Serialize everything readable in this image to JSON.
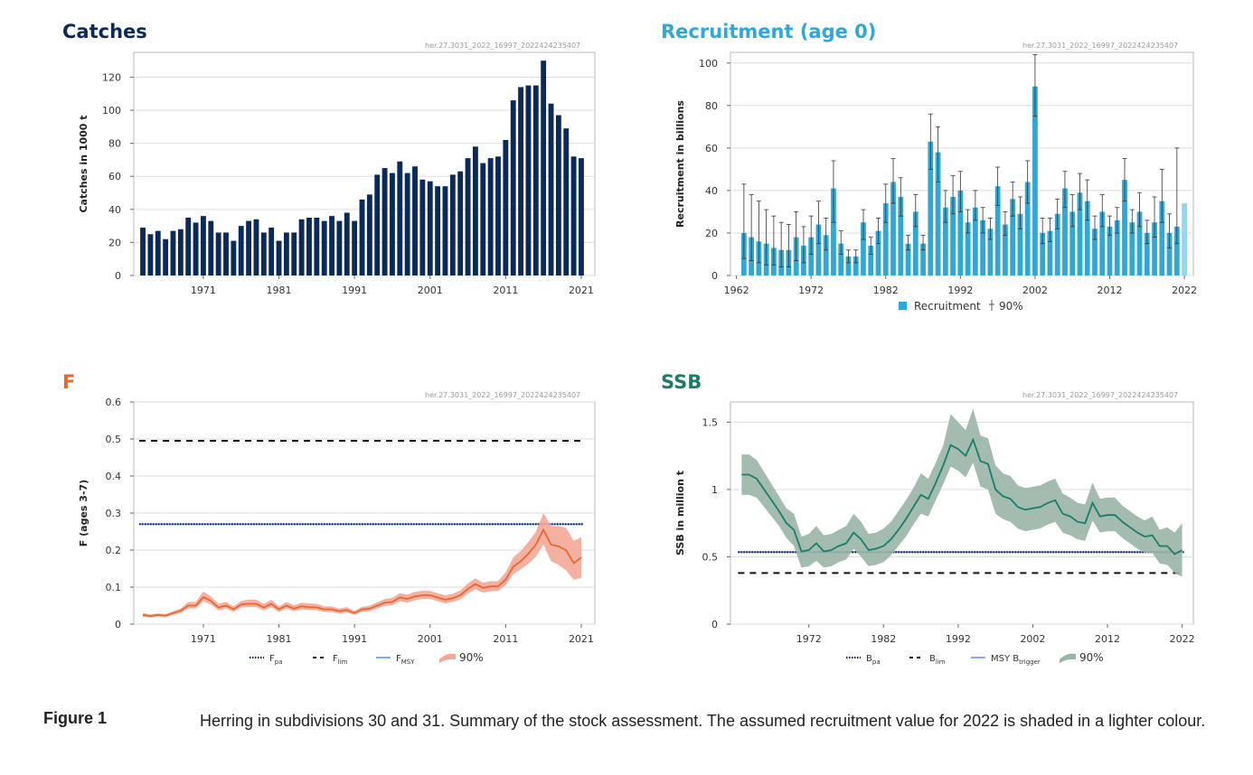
{
  "panels": {
    "catches": {
      "title": "Catches",
      "tag": "her.27.3031_2022_16997_2022424235407",
      "color": "#0b2a5a"
    },
    "recruitment": {
      "title": "Recruitment (age 0)",
      "tag": "her.27.3031_2022_16997_2022424235407",
      "color": "#2fa8d8"
    },
    "f": {
      "title": "F",
      "tag": "her.27.3031_2022_16997_2022424235407",
      "color": "#e8672f"
    },
    "ssb": {
      "title": "SSB",
      "tag": "her.27.3031_2022_16997_2022424235407",
      "color": "#1a7d6b"
    }
  },
  "chart_data": [
    {
      "id": "catches",
      "type": "bar",
      "ylabel": "Catches in 1000 t",
      "ylim": [
        0,
        135
      ],
      "yticks": [
        0,
        20,
        40,
        60,
        80,
        100,
        120
      ],
      "xticks": [
        1971,
        1981,
        1991,
        2001,
        2011,
        2021
      ],
      "grid": true,
      "bar_color": "#0b2a5a",
      "series": [
        {
          "x": [
            1963,
            1964,
            1965,
            1966,
            1967,
            1968,
            1969,
            1970,
            1971,
            1972,
            1973,
            1974,
            1975,
            1976,
            1977,
            1978,
            1979,
            1980,
            1981,
            1982,
            1983,
            1984,
            1985,
            1986,
            1987,
            1988,
            1989,
            1990,
            1991,
            1992,
            1993,
            1994,
            1995,
            1996,
            1997,
            1998,
            1999,
            2000,
            2001,
            2002,
            2003,
            2004,
            2005,
            2006,
            2007,
            2008,
            2009,
            2010,
            2011,
            2012,
            2013,
            2014,
            2015,
            2016,
            2017,
            2018,
            2019,
            2020,
            2021
          ],
          "values": [
            29,
            25,
            27,
            22,
            27,
            28,
            35,
            32,
            36,
            33,
            26,
            26,
            21,
            30,
            33,
            34,
            26,
            29,
            21,
            26,
            26,
            34,
            35,
            35,
            33,
            36,
            33,
            38,
            33,
            46,
            49,
            61,
            65,
            62,
            69,
            62,
            66,
            58,
            57,
            54,
            54,
            61,
            63,
            71,
            78,
            68,
            71,
            72,
            82,
            106,
            114,
            115,
            115,
            130,
            104,
            97,
            89,
            72,
            71
          ]
        }
      ]
    },
    {
      "id": "recruitment",
      "type": "bar",
      "ylabel": "Recruitment in billions",
      "ylim": [
        0,
        105
      ],
      "yticks": [
        0,
        20,
        40,
        60,
        80,
        100
      ],
      "xticks": [
        1962,
        1972,
        1982,
        1992,
        2002,
        2012,
        2022
      ],
      "grid": true,
      "bar_color": "#2fa8d8",
      "assumed_color": "#92d6f2",
      "legend": {
        "bar": "Recruitment",
        "error": "90%"
      },
      "series": [
        {
          "name": "Recruitment",
          "x": [
            1963,
            1964,
            1965,
            1966,
            1967,
            1968,
            1969,
            1970,
            1971,
            1972,
            1973,
            1974,
            1975,
            1976,
            1977,
            1978,
            1979,
            1980,
            1981,
            1982,
            1983,
            1984,
            1985,
            1986,
            1987,
            1988,
            1989,
            1990,
            1991,
            1992,
            1993,
            1994,
            1995,
            1996,
            1997,
            1998,
            1999,
            2000,
            2001,
            2002,
            2003,
            2004,
            2005,
            2006,
            2007,
            2008,
            2009,
            2010,
            2011,
            2012,
            2013,
            2014,
            2015,
            2016,
            2017,
            2018,
            2019,
            2020,
            2021,
            2022
          ],
          "values": [
            20,
            18,
            16,
            15,
            13,
            12,
            12,
            18,
            14,
            18,
            24,
            19,
            41,
            15,
            9,
            9,
            25,
            14,
            21,
            34,
            44,
            37,
            15,
            30,
            15,
            63,
            58,
            32,
            37,
            40,
            25,
            32,
            26,
            22,
            42,
            24,
            36,
            29,
            44,
            89,
            20,
            21,
            29,
            41,
            30,
            39,
            35,
            22,
            30,
            23,
            26,
            45,
            25,
            30,
            20,
            25,
            35,
            20,
            23,
            34
          ],
          "low": [
            8,
            7,
            6,
            5,
            5,
            4,
            4,
            7,
            6,
            10,
            15,
            12,
            25,
            10,
            6,
            6,
            17,
            10,
            15,
            25,
            34,
            28,
            12,
            23,
            12,
            50,
            44,
            25,
            29,
            30,
            20,
            26,
            20,
            17,
            33,
            19,
            28,
            22,
            34,
            75,
            15,
            16,
            22,
            32,
            23,
            31,
            26,
            17,
            23,
            19,
            20,
            35,
            20,
            23,
            15,
            18,
            25,
            13,
            15,
            34
          ],
          "high": [
            43,
            38,
            35,
            31,
            28,
            25,
            24,
            30,
            23,
            28,
            35,
            27,
            54,
            21,
            12,
            12,
            31,
            18,
            27,
            43,
            55,
            46,
            19,
            38,
            19,
            76,
            70,
            40,
            47,
            49,
            31,
            40,
            32,
            27,
            51,
            30,
            44,
            37,
            54,
            104,
            27,
            27,
            36,
            49,
            38,
            48,
            45,
            28,
            38,
            28,
            32,
            55,
            31,
            39,
            26,
            37,
            50,
            29,
            60,
            34
          ]
        }
      ]
    },
    {
      "id": "f",
      "type": "line",
      "ylabel": "F (ages 3-7)",
      "ylim": [
        0,
        0.6
      ],
      "yticks": [
        0,
        0.1,
        0.2,
        0.3,
        0.4,
        0.5,
        0.6
      ],
      "xticks": [
        1971,
        1981,
        1991,
        2001,
        2011,
        2021
      ],
      "grid": true,
      "line_color": "#e8672f",
      "band_color": "#f3a898",
      "ref_lines": {
        "fpa": 0.27,
        "flim": 0.495,
        "fmsy": 0.27
      },
      "legend": [
        {
          "style": "dotted",
          "label": "F",
          "sub": "pa"
        },
        {
          "style": "dashed",
          "label": "F",
          "sub": "lim"
        },
        {
          "style": "solid",
          "label": "F",
          "sub": "MSY"
        },
        {
          "style": "band",
          "label": "90%",
          "sub": ""
        }
      ],
      "series": [
        {
          "x": [
            1963,
            1964,
            1965,
            1966,
            1967,
            1968,
            1969,
            1970,
            1971,
            1972,
            1973,
            1974,
            1975,
            1976,
            1977,
            1978,
            1979,
            1980,
            1981,
            1982,
            1983,
            1984,
            1985,
            1986,
            1987,
            1988,
            1989,
            1990,
            1991,
            1992,
            1993,
            1994,
            1995,
            1996,
            1997,
            1998,
            1999,
            2000,
            2001,
            2002,
            2003,
            2004,
            2005,
            2006,
            2007,
            2008,
            2009,
            2010,
            2011,
            2012,
            2013,
            2014,
            2015,
            2016,
            2017,
            2018,
            2019,
            2020,
            2021
          ],
          "values": [
            0.025,
            0.022,
            0.025,
            0.023,
            0.03,
            0.036,
            0.05,
            0.05,
            0.073,
            0.063,
            0.045,
            0.05,
            0.04,
            0.053,
            0.055,
            0.055,
            0.045,
            0.055,
            0.04,
            0.05,
            0.042,
            0.048,
            0.046,
            0.045,
            0.04,
            0.04,
            0.035,
            0.038,
            0.03,
            0.04,
            0.042,
            0.05,
            0.058,
            0.06,
            0.072,
            0.068,
            0.075,
            0.078,
            0.078,
            0.072,
            0.066,
            0.07,
            0.078,
            0.095,
            0.108,
            0.098,
            0.102,
            0.102,
            0.12,
            0.155,
            0.17,
            0.19,
            0.215,
            0.255,
            0.215,
            0.21,
            0.2,
            0.165,
            0.18
          ],
          "low": [
            0.02,
            0.018,
            0.021,
            0.019,
            0.025,
            0.03,
            0.042,
            0.042,
            0.062,
            0.053,
            0.037,
            0.042,
            0.033,
            0.045,
            0.046,
            0.046,
            0.037,
            0.046,
            0.033,
            0.042,
            0.035,
            0.04,
            0.038,
            0.037,
            0.033,
            0.033,
            0.029,
            0.031,
            0.025,
            0.034,
            0.035,
            0.042,
            0.049,
            0.051,
            0.062,
            0.058,
            0.065,
            0.068,
            0.068,
            0.062,
            0.056,
            0.06,
            0.067,
            0.083,
            0.094,
            0.085,
            0.089,
            0.089,
            0.105,
            0.135,
            0.148,
            0.163,
            0.182,
            0.215,
            0.17,
            0.16,
            0.145,
            0.12,
            0.125
          ],
          "high": [
            0.03,
            0.026,
            0.029,
            0.027,
            0.035,
            0.042,
            0.06,
            0.06,
            0.088,
            0.075,
            0.055,
            0.06,
            0.048,
            0.063,
            0.066,
            0.066,
            0.055,
            0.066,
            0.048,
            0.06,
            0.051,
            0.058,
            0.056,
            0.055,
            0.048,
            0.048,
            0.042,
            0.046,
            0.036,
            0.047,
            0.05,
            0.059,
            0.068,
            0.071,
            0.084,
            0.08,
            0.087,
            0.09,
            0.09,
            0.084,
            0.078,
            0.082,
            0.091,
            0.11,
            0.124,
            0.112,
            0.116,
            0.116,
            0.14,
            0.18,
            0.198,
            0.222,
            0.25,
            0.3,
            0.265,
            0.265,
            0.26,
            0.225,
            0.235
          ]
        }
      ]
    },
    {
      "id": "ssb",
      "type": "line",
      "ylabel": "SSB in million t",
      "ylim": [
        0,
        1.65
      ],
      "yticks": [
        0,
        0.5,
        1,
        1.5
      ],
      "ytick_labels": [
        "0",
        "0.5",
        "1",
        "1.5"
      ],
      "xticks": [
        1972,
        1982,
        1992,
        2002,
        2012,
        2022
      ],
      "grid": true,
      "line_color": "#1a7d6b",
      "band_color": "#9ab5a6",
      "ref_lines": {
        "bpa": 0.535,
        "blim": 0.38,
        "msy_btrigger": 0.535
      },
      "legend": [
        {
          "style": "dotted",
          "label": "B",
          "sub": "pa"
        },
        {
          "style": "dashed",
          "label": "B",
          "sub": "lim"
        },
        {
          "style": "solid",
          "label": "MSY B",
          "sub": "trigger"
        },
        {
          "style": "band",
          "label": "90%",
          "sub": ""
        }
      ],
      "series": [
        {
          "x": [
            1963,
            1964,
            1965,
            1966,
            1967,
            1968,
            1969,
            1970,
            1971,
            1972,
            1973,
            1974,
            1975,
            1976,
            1977,
            1978,
            1979,
            1980,
            1981,
            1982,
            1983,
            1984,
            1985,
            1986,
            1987,
            1988,
            1989,
            1990,
            1991,
            1992,
            1993,
            1994,
            1995,
            1996,
            1997,
            1998,
            1999,
            2000,
            2001,
            2002,
            2003,
            2004,
            2005,
            2006,
            2007,
            2008,
            2009,
            2010,
            2011,
            2012,
            2013,
            2014,
            2015,
            2016,
            2017,
            2018,
            2019,
            2020,
            2021,
            2022
          ],
          "values": [
            1.11,
            1.11,
            1.08,
            1.0,
            0.92,
            0.84,
            0.75,
            0.7,
            0.54,
            0.55,
            0.6,
            0.54,
            0.55,
            0.58,
            0.6,
            0.68,
            0.63,
            0.55,
            0.56,
            0.58,
            0.63,
            0.7,
            0.78,
            0.87,
            0.96,
            0.93,
            1.05,
            1.18,
            1.33,
            1.3,
            1.25,
            1.37,
            1.21,
            1.19,
            1.0,
            0.95,
            0.93,
            0.87,
            0.85,
            0.86,
            0.87,
            0.9,
            0.92,
            0.82,
            0.8,
            0.76,
            0.75,
            0.9,
            0.8,
            0.81,
            0.81,
            0.76,
            0.72,
            0.68,
            0.65,
            0.66,
            0.58,
            0.58,
            0.52,
            0.55
          ],
          "low": [
            0.96,
            0.96,
            0.94,
            0.87,
            0.8,
            0.73,
            0.64,
            0.58,
            0.42,
            0.43,
            0.47,
            0.42,
            0.43,
            0.46,
            0.48,
            0.56,
            0.5,
            0.43,
            0.44,
            0.46,
            0.51,
            0.58,
            0.65,
            0.74,
            0.82,
            0.8,
            0.92,
            1.04,
            1.17,
            1.14,
            1.09,
            1.2,
            1.02,
            1.0,
            0.82,
            0.78,
            0.76,
            0.71,
            0.69,
            0.7,
            0.71,
            0.74,
            0.76,
            0.68,
            0.66,
            0.63,
            0.62,
            0.77,
            0.68,
            0.69,
            0.69,
            0.64,
            0.6,
            0.56,
            0.53,
            0.53,
            0.45,
            0.44,
            0.38,
            0.35
          ],
          "high": [
            1.26,
            1.26,
            1.22,
            1.13,
            1.04,
            0.95,
            0.86,
            0.82,
            0.65,
            0.67,
            0.73,
            0.66,
            0.67,
            0.7,
            0.73,
            0.82,
            0.76,
            0.67,
            0.68,
            0.71,
            0.76,
            0.84,
            0.92,
            1.01,
            1.12,
            1.08,
            1.2,
            1.33,
            1.56,
            1.5,
            1.44,
            1.6,
            1.4,
            1.38,
            1.18,
            1.12,
            1.1,
            1.03,
            1.01,
            1.02,
            1.03,
            1.06,
            1.08,
            0.97,
            0.94,
            0.9,
            0.89,
            1.05,
            0.93,
            0.94,
            0.94,
            0.88,
            0.84,
            0.8,
            0.77,
            0.8,
            0.7,
            0.72,
            0.68,
            0.75
          ]
        }
      ]
    }
  ],
  "caption": {
    "label": "Figure 1",
    "text": "Herring in subdivisions 30 and 31. Summary of the stock assessment. The assumed recruitment value for 2022 is shaded in a lighter colour."
  }
}
